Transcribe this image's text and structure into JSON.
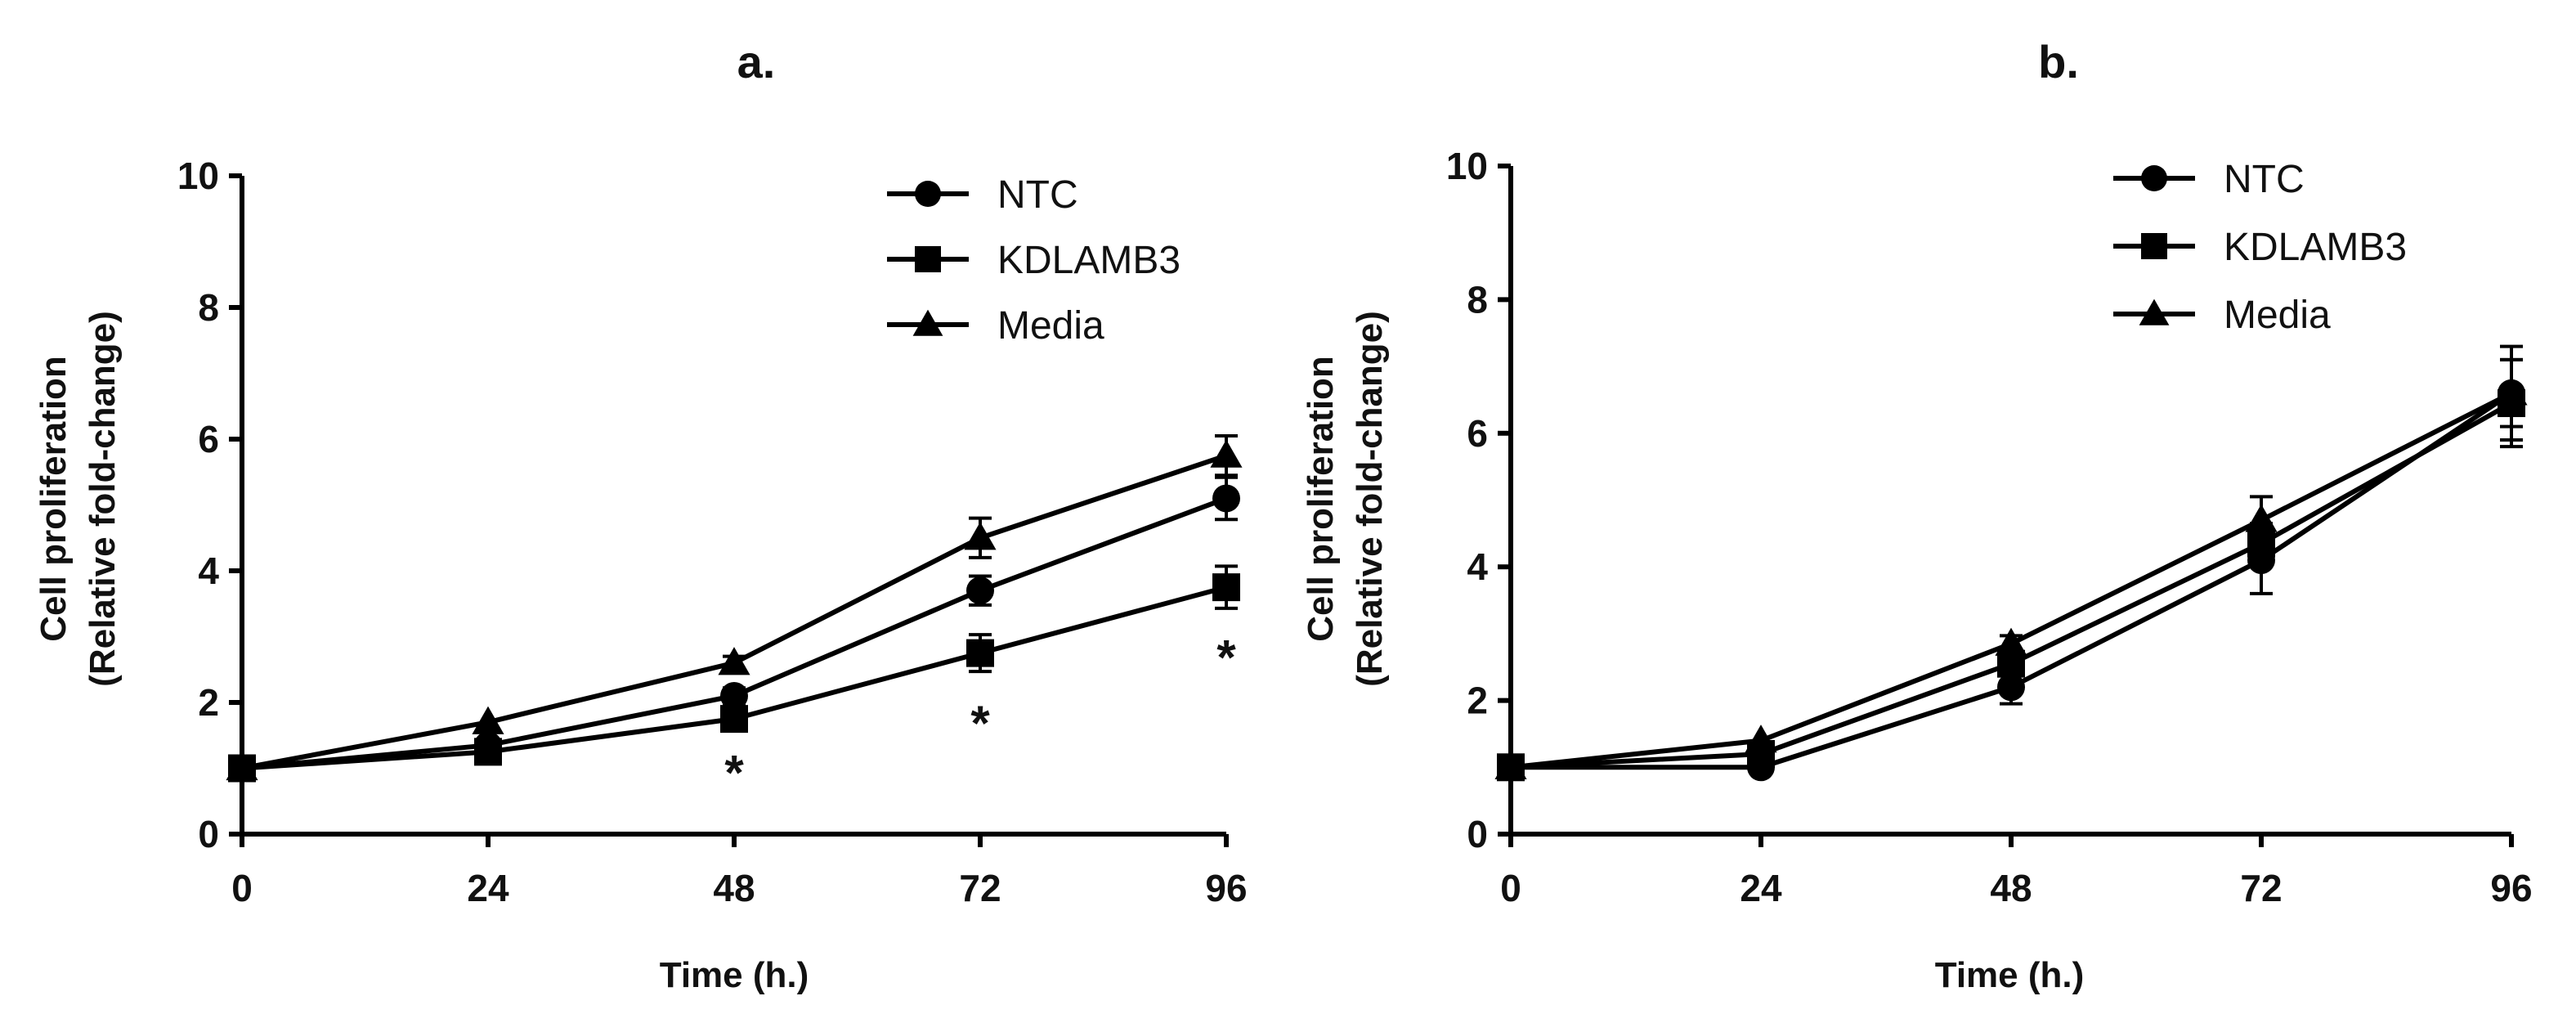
{
  "chart_data": [
    {
      "type": "line",
      "title": "a.",
      "xlabel": "Time (h.)",
      "ylabel_line1": "Cell proliferation",
      "ylabel_line2": "(Relative fold-change)",
      "x": [
        0,
        24,
        48,
        72,
        96
      ],
      "xticks": [
        "0",
        "24",
        "48",
        "72",
        "96"
      ],
      "yticks": [
        "0",
        "2",
        "4",
        "6",
        "8",
        "10"
      ],
      "xlim": [
        0,
        96
      ],
      "ylim": [
        0,
        10
      ],
      "legend_position": "top-right",
      "series": [
        {
          "name": "NTC",
          "marker": "circle",
          "values": [
            1.0,
            1.35,
            2.1,
            3.7,
            5.1
          ],
          "errors": [
            0.05,
            0.08,
            0.12,
            0.22,
            0.32
          ]
        },
        {
          "name": "KDLAMB3",
          "marker": "square",
          "values": [
            1.0,
            1.25,
            1.75,
            2.75,
            3.75
          ],
          "errors": [
            0.05,
            0.08,
            0.12,
            0.28,
            0.32
          ]
        },
        {
          "name": "Media",
          "marker": "triangle",
          "values": [
            1.0,
            1.7,
            2.6,
            4.5,
            5.75
          ],
          "errors": [
            0.05,
            0.05,
            0.1,
            0.3,
            0.3
          ]
        }
      ],
      "annotations": [
        {
          "x": 48,
          "y": 0.95,
          "text": "*"
        },
        {
          "x": 72,
          "y": 1.7,
          "text": "*"
        },
        {
          "x": 96,
          "y": 2.7,
          "text": "*"
        }
      ]
    },
    {
      "type": "line",
      "title": "b.",
      "xlabel": "Time (h.)",
      "ylabel_line1": "Cell proliferation",
      "ylabel_line2": "(Relative fold-change)",
      "x": [
        0,
        24,
        48,
        72,
        96
      ],
      "xticks": [
        "0",
        "24",
        "48",
        "72",
        "96"
      ],
      "yticks": [
        "0",
        "2",
        "4",
        "6",
        "8",
        "10"
      ],
      "xlim": [
        0,
        96
      ],
      "ylim": [
        0,
        10
      ],
      "legend_position": "top-right",
      "series": [
        {
          "name": "NTC",
          "marker": "circle",
          "values": [
            1.0,
            1.0,
            2.2,
            4.1,
            6.6
          ],
          "errors": [
            0.05,
            0.05,
            0.25,
            0.5,
            0.7
          ]
        },
        {
          "name": "KDLAMB3",
          "marker": "square",
          "values": [
            1.0,
            1.2,
            2.55,
            4.35,
            6.45
          ],
          "errors": [
            0.05,
            0.05,
            0.15,
            0.3,
            0.65
          ]
        },
        {
          "name": "Media",
          "marker": "triangle",
          "values": [
            1.0,
            1.4,
            2.85,
            4.7,
            6.6
          ],
          "errors": [
            0.05,
            0.05,
            0.12,
            0.35,
            0.5
          ]
        }
      ],
      "annotations": []
    }
  ]
}
